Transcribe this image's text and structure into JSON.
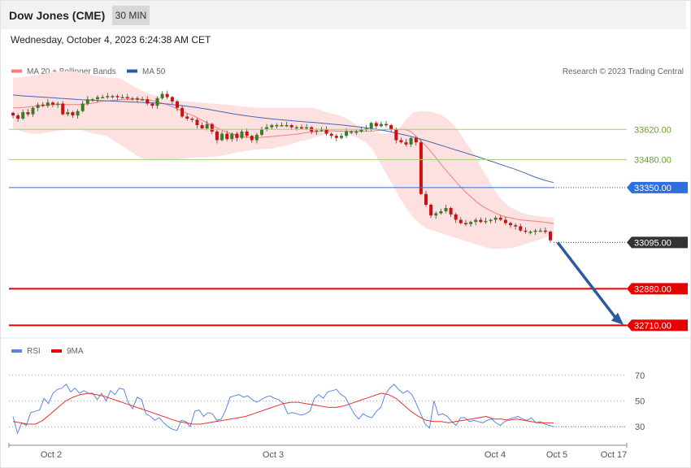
{
  "header": {
    "title": "Dow Jones (CME)",
    "timeframe": "30 MIN",
    "datetime": "Wednesday, October 4, 2023 6:24:38 AM CET"
  },
  "legend": {
    "ma20_bb": "MA 20 + Bollinger Bands",
    "ma50": "MA 50",
    "copyright": "Research © 2023 Trading Central",
    "rsi": "RSI",
    "rsi_ma": "9MA"
  },
  "colors": {
    "resistance": "#a3d07a",
    "pivot": "#2e6fdf",
    "support": "#e60000",
    "last": "#333333",
    "arrow": "#2a5b9e",
    "candle_up": "#3a7d23",
    "candle_down": "#d01010",
    "bb_fill": "#fde0e0",
    "ma20": "#f08080",
    "ma50": "#4a68b0",
    "rsi": "#5b86e0",
    "rsi_ma": "#e83030"
  },
  "chart_data": [
    {
      "type": "candlestick",
      "title": "Dow Jones (CME)",
      "ylim": [
        32670,
        33840
      ],
      "levels": [
        {
          "value": 33620,
          "label": "33620.00",
          "kind": "resistance"
        },
        {
          "value": 33480,
          "label": "33480.00",
          "kind": "resistance"
        },
        {
          "value": 33350,
          "label": "33350.00",
          "kind": "pivot"
        },
        {
          "value": 33095,
          "label": "33095.00",
          "kind": "last"
        },
        {
          "value": 32880,
          "label": "32880.00",
          "kind": "support"
        },
        {
          "value": 32710,
          "label": "32710.00",
          "kind": "support"
        }
      ],
      "x_ticks": [
        "Oct 2",
        "Oct 3",
        "Oct 4",
        "Oct 5",
        "Oct 17"
      ],
      "series": [
        {
          "name": "MA 20 + Bollinger Bands"
        },
        {
          "name": "MA 50"
        }
      ],
      "closes": [
        33685,
        33670,
        33700,
        33690,
        33720,
        33735,
        33730,
        33745,
        33735,
        33740,
        33690,
        33700,
        33685,
        33705,
        33740,
        33760,
        33760,
        33770,
        33770,
        33775,
        33775,
        33770,
        33770,
        33765,
        33765,
        33760,
        33760,
        33740,
        33730,
        33765,
        33785,
        33770,
        33750,
        33720,
        33680,
        33670,
        33665,
        33640,
        33625,
        33645,
        33610,
        33570,
        33600,
        33575,
        33600,
        33580,
        33610,
        33590,
        33570,
        33595,
        33620,
        33630,
        33640,
        33640,
        33640,
        33640,
        33630,
        33630,
        33625,
        33630,
        33610,
        33615,
        33620,
        33600,
        33590,
        33580,
        33590,
        33610,
        33610,
        33610,
        33620,
        33625,
        33650,
        33635,
        33645,
        33640,
        33620,
        33570,
        33560,
        33550,
        33580,
        33560,
        33320,
        33270,
        33220,
        33230,
        33240,
        33255,
        33225,
        33200,
        33185,
        33180,
        33190,
        33200,
        33190,
        33195,
        33200,
        33210,
        33200,
        33185,
        33175,
        33170,
        33150,
        33145,
        33145,
        33150,
        33150,
        33145,
        33105
      ],
      "ma20": [
        33720,
        33720,
        33722,
        33725,
        33728,
        33730,
        33732,
        33735,
        33735,
        33737,
        33735,
        33735,
        33735,
        33737,
        33740,
        33745,
        33750,
        33752,
        33755,
        33757,
        33760,
        33760,
        33760,
        33760,
        33758,
        33755,
        33750,
        33742,
        33735,
        33725,
        33712,
        33700,
        33690,
        33680,
        33667,
        33653,
        33640,
        33627,
        33615,
        33605,
        33597,
        33590,
        33585,
        33582,
        33582,
        33583,
        33585,
        33587,
        33590,
        33592,
        33595,
        33597,
        33600,
        33605,
        33607,
        33610,
        33612,
        33613,
        33613,
        33612,
        33612,
        33612,
        33612,
        33612,
        33612,
        33612,
        33615,
        33617,
        33620,
        33620,
        33620,
        33620,
        33612,
        33590,
        33565,
        33540,
        33510,
        33477,
        33445,
        33415,
        33385,
        33357,
        33330,
        33307,
        33285,
        33265,
        33250,
        33237,
        33225,
        33215,
        33210,
        33205,
        33200,
        33197,
        33195,
        33193,
        33190,
        33187,
        33183
      ],
      "ma50": [
        33780,
        33776,
        33773,
        33770,
        33767,
        33764,
        33761,
        33758,
        33756,
        33754,
        33752,
        33750,
        33748,
        33746,
        33744,
        33742,
        33738,
        33733,
        33728,
        33722,
        33715,
        33707,
        33699,
        33691,
        33684,
        33678,
        33673,
        33668,
        33664,
        33660,
        33656,
        33653,
        33649,
        33645,
        33641,
        33636,
        33631,
        33625,
        33618,
        33610,
        33600,
        33590,
        33578,
        33565,
        33551,
        33537,
        33523,
        33509,
        33495,
        33480,
        33465,
        33450,
        33435,
        33418,
        33400,
        33385,
        33373
      ],
      "bb_upper": [
        33860,
        33862,
        33866,
        33870,
        33874,
        33880,
        33886,
        33892,
        33890,
        33890,
        33885,
        33880,
        33872,
        33866,
        33860,
        33860,
        33856,
        33840,
        33822,
        33805,
        33790,
        33780,
        33770,
        33760,
        33755,
        33752,
        33750,
        33747,
        33745,
        33742,
        33740,
        33737,
        33735,
        33732,
        33728,
        33725,
        33723,
        33720,
        33720,
        33720,
        33720,
        33720,
        33720,
        33720,
        33722,
        33720,
        33710,
        33700,
        33692,
        33684,
        33670,
        33650,
        33630,
        33620,
        33610,
        33600,
        33600,
        33610,
        33630,
        33670,
        33700,
        33705,
        33705,
        33700,
        33690,
        33670,
        33640,
        33600,
        33555,
        33510,
        33450,
        33400,
        33345,
        33300,
        33270,
        33250,
        33235,
        33225,
        33220,
        33216,
        33212,
        33210
      ],
      "bb_lower": [
        33625,
        33615,
        33605,
        33600,
        33600,
        33605,
        33610,
        33615,
        33618,
        33620,
        33620,
        33610,
        33600,
        33595,
        33590,
        33570,
        33550,
        33530,
        33510,
        33490,
        33480,
        33475,
        33475,
        33475,
        33480,
        33483,
        33487,
        33490,
        33490,
        33490,
        33492,
        33497,
        33502,
        33510,
        33515,
        33520,
        33525,
        33528,
        33530,
        33532,
        33540,
        33545,
        33555,
        33565,
        33570,
        33580,
        33590,
        33600,
        33605,
        33605,
        33600,
        33590,
        33575,
        33557,
        33520,
        33465,
        33410,
        33355,
        33300,
        33250,
        33210,
        33180,
        33160,
        33150,
        33140,
        33130,
        33120,
        33110,
        33100,
        33090,
        33080,
        33070,
        33065,
        33065,
        33067,
        33070,
        33080,
        33090,
        33100,
        33110,
        33120,
        33130
      ]
    },
    {
      "type": "line",
      "title": "RSI",
      "ylim": [
        20,
        80
      ],
      "yticks": [
        70,
        50,
        30
      ],
      "series": [
        {
          "name": "RSI",
          "values": [
            38,
            25,
            33,
            31,
            41,
            42,
            43,
            52,
            48,
            56,
            59,
            60,
            63,
            57,
            60,
            56,
            58,
            56,
            56,
            51,
            56,
            50,
            58,
            55,
            60,
            59,
            49,
            44,
            53,
            51,
            40,
            38,
            35,
            37,
            33,
            30,
            28,
            27,
            35,
            34,
            30,
            42,
            43,
            38,
            41,
            40,
            35,
            36,
            43,
            53,
            54,
            55,
            53,
            54,
            51,
            49,
            51,
            53,
            54,
            52,
            51,
            48,
            40,
            41,
            40,
            39,
            40,
            42,
            52,
            55,
            52,
            57,
            58,
            59,
            55,
            53,
            46,
            40,
            36,
            40,
            38,
            37,
            42,
            45,
            55,
            60,
            63,
            59,
            56,
            58,
            55,
            48,
            40,
            32,
            29,
            50,
            39,
            40,
            38,
            34,
            31,
            37,
            37,
            34,
            35,
            34,
            33,
            35,
            36,
            33,
            31,
            34,
            36,
            37,
            38,
            36,
            35,
            37,
            33,
            34,
            32,
            31,
            30
          ]
        },
        {
          "name": "9MA",
          "values": [
            34,
            33,
            32,
            32,
            35,
            40,
            45,
            50,
            53,
            55,
            56,
            55,
            54,
            52,
            50,
            48,
            46,
            44,
            42,
            40,
            38,
            36,
            34,
            33,
            32,
            32,
            33,
            34,
            35,
            36,
            37,
            38,
            40,
            42,
            44,
            46,
            48,
            49,
            49,
            48,
            47,
            46,
            45,
            45,
            46,
            48,
            50,
            52,
            54,
            56,
            55,
            52,
            47,
            42,
            38,
            35,
            34,
            34,
            33,
            34,
            35,
            36,
            37,
            38,
            36,
            36,
            35,
            36,
            35,
            34,
            33,
            33,
            33
          ]
        }
      ]
    }
  ]
}
